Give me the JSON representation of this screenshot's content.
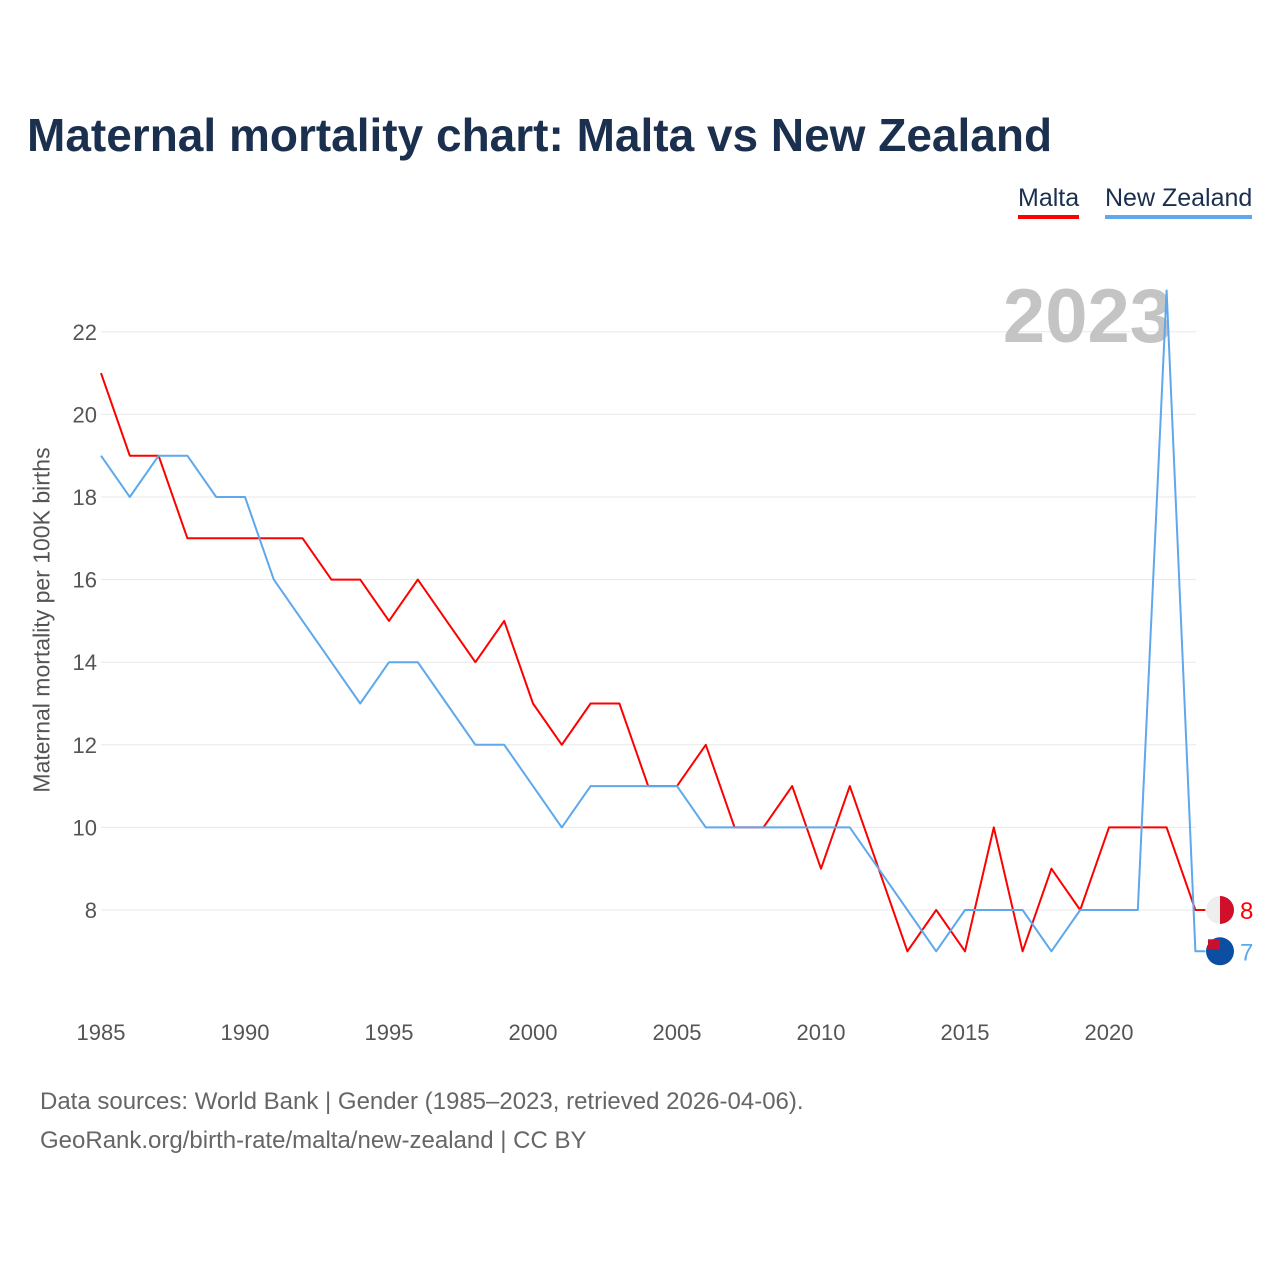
{
  "chart_data": {
    "type": "line",
    "title": "Maternal mortality chart: Malta vs New Zealand",
    "ylabel": "Maternal mortality per 100K births",
    "xlabel": "",
    "ylim": [
      5.5,
      23.5
    ],
    "xlim": [
      1985,
      2023
    ],
    "yticks": [
      8,
      10,
      12,
      14,
      16,
      18,
      20,
      22
    ],
    "xticks": [
      1985,
      1990,
      1995,
      2000,
      2005,
      2010,
      2015,
      2020
    ],
    "year_label": "2023",
    "legend_placement": "top-right",
    "x": [
      1985,
      1986,
      1987,
      1988,
      1989,
      1990,
      1991,
      1992,
      1993,
      1994,
      1995,
      1996,
      1997,
      1998,
      1999,
      2000,
      2001,
      2002,
      2003,
      2004,
      2005,
      2006,
      2007,
      2008,
      2009,
      2010,
      2011,
      2012,
      2013,
      2014,
      2015,
      2016,
      2017,
      2018,
      2019,
      2020,
      2021,
      2022,
      2023
    ],
    "series": [
      {
        "name": "Malta",
        "color": "#ff0000",
        "end_label": "8",
        "values": [
          21,
          19,
          19,
          17,
          17,
          17,
          17,
          17,
          16,
          16,
          15,
          16,
          15,
          14,
          15,
          13,
          12,
          13,
          13,
          11,
          11,
          12,
          10,
          10,
          11,
          9,
          11,
          9,
          7,
          8,
          7,
          10,
          7,
          9,
          8,
          10,
          10,
          10,
          8
        ]
      },
      {
        "name": "New Zealand",
        "color": "#5ea8ee",
        "end_label": "7",
        "values": [
          19,
          18,
          19,
          19,
          18,
          18,
          16,
          15,
          14,
          13,
          14,
          14,
          13,
          12,
          12,
          11,
          10,
          11,
          11,
          11,
          11,
          10,
          10,
          10,
          10,
          10,
          10,
          9,
          8,
          7,
          8,
          8,
          8,
          7,
          8,
          8,
          8,
          23,
          7
        ]
      }
    ]
  },
  "footer": {
    "line1": "Data sources: World Bank | Gender (1985–2023, retrieved 2026-04-06).",
    "line2": "GeoRank.org/birth-rate/malta/new-zealand | CC BY"
  }
}
